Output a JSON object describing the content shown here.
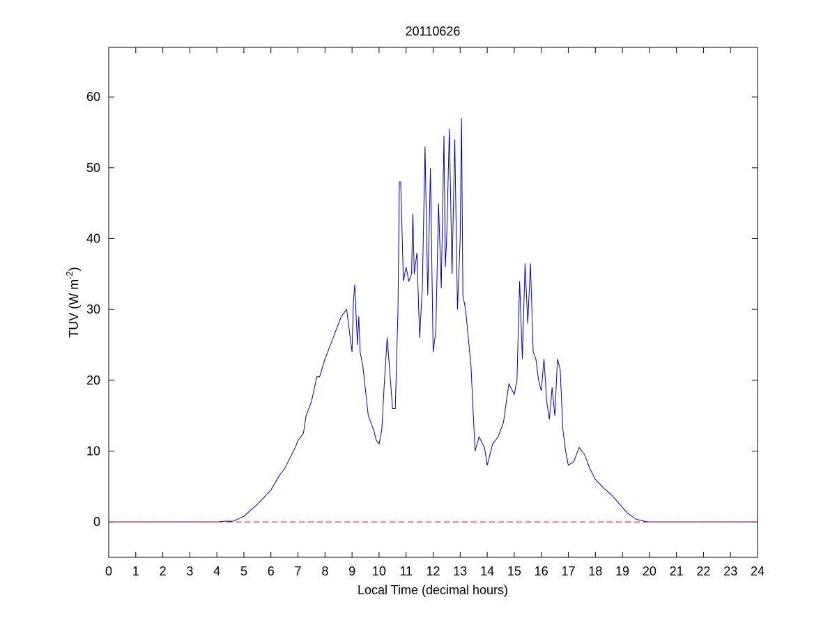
{
  "chart_data": {
    "type": "line",
    "title": "20110626",
    "xlabel": "Local Time (decimal hours)",
    "ylabel": {
      "base": "TUV (W m",
      "sup": "-2",
      "end": ")"
    },
    "xlim": [
      0,
      24
    ],
    "xticks": [
      0,
      1,
      2,
      3,
      4,
      5,
      6,
      7,
      8,
      9,
      10,
      11,
      12,
      13,
      14,
      15,
      16,
      17,
      18,
      19,
      20,
      21,
      22,
      23,
      24
    ],
    "ylim": [
      -5,
      67
    ],
    "yticks": [
      0,
      10,
      20,
      30,
      40,
      50,
      60
    ],
    "grid": false,
    "reference_line": {
      "value": 0,
      "color": "#dd0000",
      "style": "dashed"
    },
    "series": [
      {
        "color": "#0000cc",
        "x": [
          0,
          4,
          4.3,
          4.6,
          5,
          5.5,
          6,
          6.3,
          6.5,
          6.7,
          6.9,
          7,
          7.2,
          7.3,
          7.5,
          7.7,
          7.8,
          8,
          8.2,
          8.4,
          8.6,
          8.8,
          8.9,
          9.0,
          9.05,
          9.1,
          9.2,
          9.25,
          9.3,
          9.4,
          9.6,
          9.8,
          9.9,
          10.0,
          10.1,
          10.2,
          10.3,
          10.4,
          10.5,
          10.6,
          10.7,
          10.75,
          10.8,
          10.9,
          11.0,
          11.1,
          11.2,
          11.25,
          11.3,
          11.4,
          11.5,
          11.6,
          11.7,
          11.8,
          11.9,
          12.0,
          12.1,
          12.2,
          12.3,
          12.4,
          12.45,
          12.5,
          12.6,
          12.7,
          12.8,
          12.9,
          13.0,
          13.05,
          13.1,
          13.2,
          13.4,
          13.55,
          13.7,
          13.9,
          14.0,
          14.2,
          14.4,
          14.6,
          14.8,
          15.0,
          15.1,
          15.2,
          15.3,
          15.4,
          15.5,
          15.6,
          15.7,
          15.8,
          15.9,
          16.0,
          16.1,
          16.2,
          16.3,
          16.4,
          16.5,
          16.6,
          16.7,
          16.8,
          16.9,
          17.0,
          17.2,
          17.4,
          17.6,
          17.8,
          18.0,
          18.3,
          18.6,
          18.9,
          19.2,
          19.5,
          19.8,
          20.0,
          24
        ],
        "values": [
          0,
          0,
          0.1,
          0.1,
          0.8,
          2.5,
          4.5,
          6.5,
          7.5,
          9,
          10.5,
          11.5,
          12.5,
          15,
          17,
          20.5,
          20.5,
          23,
          25,
          27,
          29,
          30,
          27,
          24,
          31,
          33.5,
          25,
          29,
          24,
          22,
          15,
          13,
          11.5,
          11,
          13,
          20,
          26,
          21,
          16,
          16,
          30,
          48,
          48,
          34,
          36,
          34,
          35,
          43.5,
          35,
          38,
          26,
          33,
          53,
          32,
          50,
          24,
          27,
          45,
          33,
          54.5,
          36,
          40,
          55.5,
          35,
          54,
          30,
          40,
          57,
          32,
          30,
          22,
          10,
          12,
          10.5,
          8,
          11,
          12,
          14,
          19.5,
          18,
          20,
          34,
          23,
          36.5,
          28,
          36.5,
          24,
          23,
          20,
          18.5,
          23,
          17,
          14.5,
          19,
          15,
          23,
          21.5,
          13,
          10,
          8,
          8.5,
          10.5,
          9.5,
          7.5,
          6,
          4.8,
          3.8,
          2.5,
          1.2,
          0.4,
          0.1,
          0,
          0
        ]
      }
    ]
  }
}
